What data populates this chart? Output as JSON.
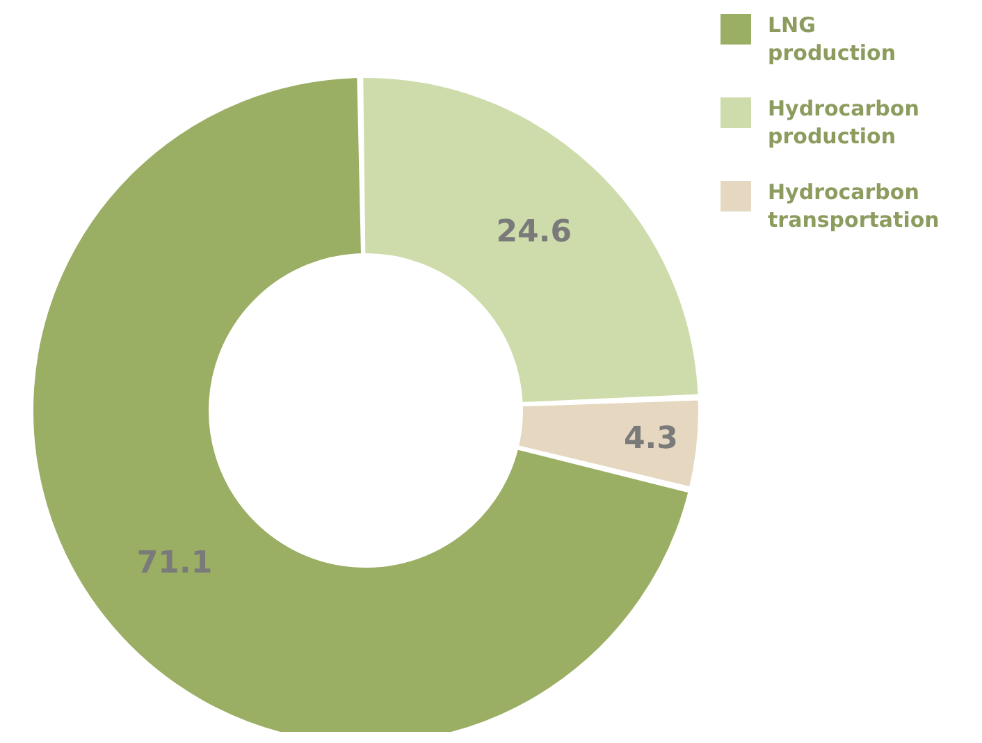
{
  "chart_data": {
    "type": "donut",
    "categories": [
      "LNG production",
      "Hydrocarbon production",
      "Hydrocarbon transportation"
    ],
    "values": [
      71.1,
      24.6,
      4.3
    ],
    "colors": [
      "#9aae64",
      "#cddcaa",
      "#e6d8c0"
    ],
    "data_labels": true,
    "legend": "top right"
  }
}
